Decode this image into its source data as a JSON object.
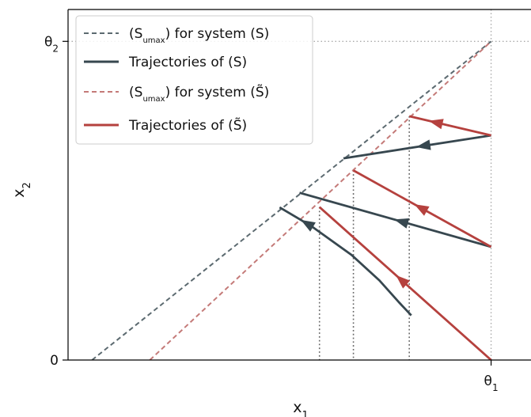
{
  "chart_data": {
    "type": "line",
    "title": "",
    "xlabel": {
      "base": "x",
      "sub": "1"
    },
    "ylabel": {
      "base": "x",
      "sub": "2"
    },
    "xlim": [
      -0.06,
      1.1
    ],
    "ylim": [
      0.0,
      1.1
    ],
    "x_ticks": [
      {
        "value": 1.0,
        "base": "θ",
        "sub": "1"
      }
    ],
    "y_ticks": [
      {
        "value": 0.0,
        "label": "0"
      },
      {
        "value": 1.0,
        "base": "θ",
        "sub": "2"
      }
    ],
    "grid": false,
    "reference_lines": [
      {
        "orientation": "vertical",
        "x": 1.0,
        "style": "dotted",
        "color": "#aaaaaa"
      },
      {
        "orientation": "horizontal",
        "y": 1.0,
        "style": "dotted",
        "color": "#aaaaaa"
      }
    ],
    "legend": {
      "placement": "top-left",
      "entries": [
        {
          "style": "dashed",
          "color": "#5c6a70",
          "pre": "(S",
          "sub": "umax",
          "post": ") for system (S)"
        },
        {
          "style": "solid",
          "color": "#37474f",
          "pre": "Trajectories of  (S)",
          "sub": "",
          "post": ""
        },
        {
          "style": "dashed",
          "color": "#c47a78",
          "pre": "(S",
          "sub": "umax",
          "post": ") for system (S̃)"
        },
        {
          "style": "solid",
          "color": "#b5413e",
          "pre": "Trajectories of  (S̃)",
          "sub": "",
          "post": ""
        }
      ]
    },
    "series": [
      {
        "kind": "boundary",
        "style": "dashed",
        "color": "#5c6a70",
        "x": [
          0.0,
          1.0
        ],
        "y": [
          0.0,
          1.0
        ]
      },
      {
        "kind": "boundary",
        "style": "dashed",
        "color": "#c47a78",
        "x": [
          0.145,
          1.0
        ],
        "y": [
          0.0,
          1.0
        ]
      },
      {
        "kind": "trajectory",
        "color": "#37474f",
        "x": [
          0.63,
          1.0
        ],
        "y": [
          0.633,
          0.705
        ],
        "arrow_at": 0.5
      },
      {
        "kind": "trajectory",
        "color": "#37474f",
        "x": [
          0.52,
          1.0
        ],
        "y": [
          0.525,
          0.355
        ],
        "arrow_at": 0.5
      },
      {
        "kind": "trajectory",
        "color": "#37474f",
        "x": [
          0.47,
          0.55,
          0.65,
          0.72,
          0.77,
          0.8
        ],
        "y": [
          0.479,
          0.42,
          0.33,
          0.25,
          0.18,
          0.14
        ],
        "arrow_at": 0.85
      },
      {
        "kind": "trajectory",
        "color": "#b5413e",
        "x": [
          0.795,
          1.0
        ],
        "y": [
          0.765,
          0.705
        ],
        "arrow_at": 0.75
      },
      {
        "kind": "trajectory",
        "color": "#b5413e",
        "x": [
          0.655,
          1.0
        ],
        "y": [
          0.595,
          0.355
        ],
        "arrow_at": 0.55
      },
      {
        "kind": "trajectory",
        "color": "#b5413e",
        "x": [
          0.57,
          1.0
        ],
        "y": [
          0.48,
          0.0
        ],
        "arrow_at": 0.55
      }
    ],
    "vertical_markers": [
      {
        "x": 0.57,
        "y_top": 0.48
      },
      {
        "x": 0.655,
        "y_top": 0.595
      },
      {
        "x": 0.795,
        "y_top": 0.765
      }
    ]
  }
}
